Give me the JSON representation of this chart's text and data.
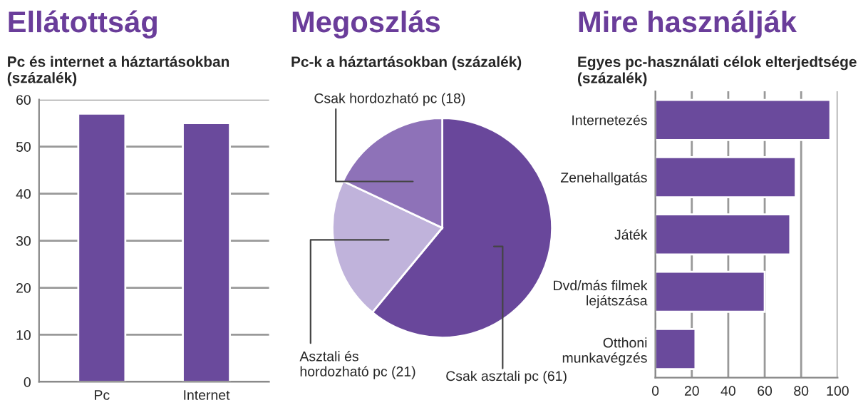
{
  "chart_data": [
    {
      "type": "bar",
      "title": "Ellátottság",
      "subtitle": "Pc és internet a háztartásokban\n(százalék)",
      "categories": [
        "Pc",
        "Internet"
      ],
      "values": [
        57,
        55
      ],
      "color": "#6a4a9c",
      "ylim": [
        0,
        60
      ],
      "yticks": [
        0,
        10,
        20,
        30,
        40,
        50,
        60
      ],
      "grid": "y"
    },
    {
      "type": "pie",
      "title": "Megoszlás",
      "subtitle": "Pc-k a háztartásokban (százalék)",
      "categories": [
        "Csak asztali pc (61)",
        "Asztali és\nhordozható pc (21)",
        "Csak hordozható pc (18)"
      ],
      "values": [
        61,
        21,
        18
      ],
      "colors": [
        "#69479b",
        "#c0b3db",
        "#8e72b8"
      ]
    },
    {
      "type": "bar",
      "orientation": "horizontal",
      "title": "Mire használják",
      "subtitle": "Egyes pc-használati célok elterjedtsége\n(százalék)",
      "categories": [
        "Internetezés",
        "Zenehallgatás",
        "Játék",
        "Dvd/más filmek\nlejátszása",
        "Otthoni\nmunkavégzés"
      ],
      "values": [
        96,
        77,
        74,
        60,
        22
      ],
      "color": "#6a4a9c",
      "xlim": [
        0,
        100
      ],
      "xticks": [
        0,
        20,
        40,
        60,
        80,
        100
      ],
      "grid": "x"
    }
  ]
}
